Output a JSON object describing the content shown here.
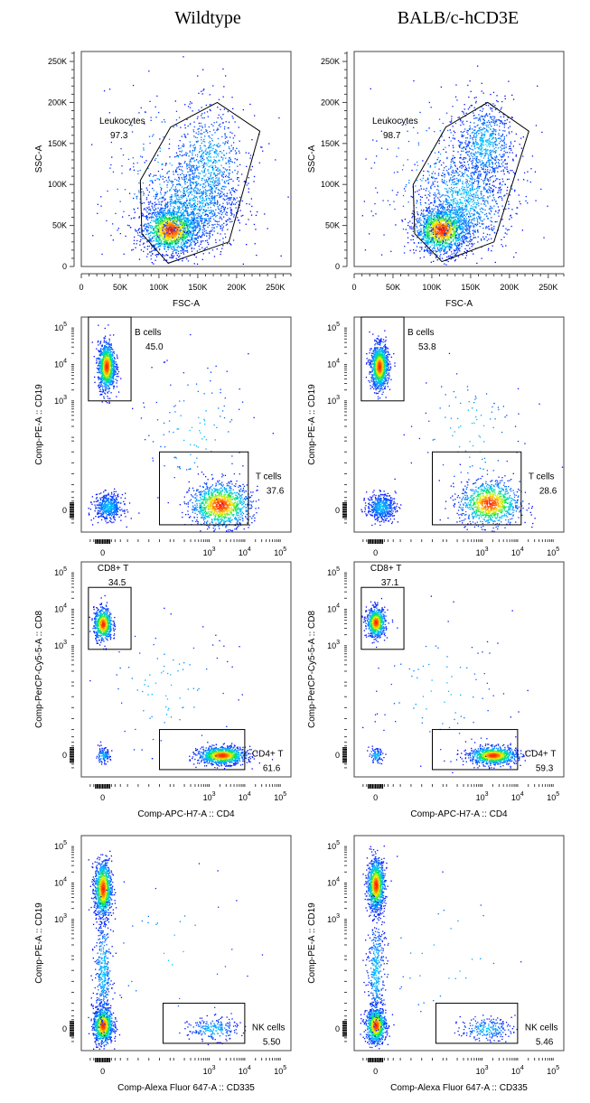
{
  "headers": {
    "left": "Wildtype",
    "right": "BALB/c-hCD3E"
  },
  "chart_data": [
    {
      "type": "scatter",
      "row": 0,
      "col": 0,
      "xlabel": "FSC-A",
      "ylabel": "SSC-A",
      "scale": "linear",
      "xlim": [
        0,
        270000
      ],
      "ylim": [
        0,
        262144
      ],
      "xticks": [
        {
          "v": 0,
          "t": "0"
        },
        {
          "v": 50000,
          "t": "50K"
        },
        {
          "v": 100000,
          "t": "100K"
        },
        {
          "v": 150000,
          "t": "150K"
        },
        {
          "v": 200000,
          "t": "200K"
        },
        {
          "v": 250000,
          "t": "250K"
        }
      ],
      "yticks": [
        {
          "v": 0,
          "t": "0"
        },
        {
          "v": 50000,
          "t": "50K"
        },
        {
          "v": 100000,
          "t": "100K"
        },
        {
          "v": 150000,
          "t": "150K"
        },
        {
          "v": 200000,
          "t": "200K"
        },
        {
          "v": 250000,
          "t": "250K"
        }
      ],
      "gates": [
        {
          "name": "Leukocytes",
          "value": "97.3",
          "shape": "polygon",
          "points": [
            [
              76000,
              105000
            ],
            [
              78000,
              40000
            ],
            [
              112000,
              4000
            ],
            [
              190000,
              30000
            ],
            [
              230000,
              165000
            ],
            [
              175000,
              200000
            ],
            [
              115000,
              170000
            ]
          ]
        }
      ],
      "populations": [
        {
          "cx": 115000,
          "cy": 45000,
          "sx": 18000,
          "sy": 14000,
          "n": 1500,
          "peak": true
        },
        {
          "cx": 140000,
          "cy": 75000,
          "sx": 30000,
          "sy": 28000,
          "n": 1000
        },
        {
          "cx": 165000,
          "cy": 125000,
          "sx": 22000,
          "sy": 35000,
          "n": 600
        },
        {
          "cx": 125000,
          "cy": 100000,
          "sx": 55000,
          "sy": 60000,
          "n": 350
        }
      ]
    },
    {
      "type": "scatter",
      "row": 0,
      "col": 1,
      "xlabel": "FSC-A",
      "ylabel": "SSC-A",
      "scale": "linear",
      "xlim": [
        0,
        270000
      ],
      "ylim": [
        0,
        262144
      ],
      "xticks": [
        {
          "v": 0,
          "t": "0"
        },
        {
          "v": 50000,
          "t": "50K"
        },
        {
          "v": 100000,
          "t": "100K"
        },
        {
          "v": 150000,
          "t": "150K"
        },
        {
          "v": 200000,
          "t": "200K"
        },
        {
          "v": 250000,
          "t": "250K"
        }
      ],
      "yticks": [
        {
          "v": 0,
          "t": "0"
        },
        {
          "v": 50000,
          "t": "50K"
        },
        {
          "v": 100000,
          "t": "100K"
        },
        {
          "v": 150000,
          "t": "150K"
        },
        {
          "v": 200000,
          "t": "200K"
        },
        {
          "v": 250000,
          "t": "250K"
        }
      ],
      "gates": [
        {
          "name": "Leukocytes",
          "value": "98.7",
          "shape": "polygon",
          "points": [
            [
              76000,
              100000
            ],
            [
              78000,
              40000
            ],
            [
              113000,
              6000
            ],
            [
              180000,
              30000
            ],
            [
              225000,
              165000
            ],
            [
              172000,
              200000
            ],
            [
              118000,
              170000
            ]
          ]
        }
      ],
      "populations": [
        {
          "cx": 112000,
          "cy": 45000,
          "sx": 17000,
          "sy": 14000,
          "n": 1500,
          "peak": true
        },
        {
          "cx": 140000,
          "cy": 80000,
          "sx": 28000,
          "sy": 30000,
          "n": 1000
        },
        {
          "cx": 168000,
          "cy": 150000,
          "sx": 18000,
          "sy": 25000,
          "n": 700
        },
        {
          "cx": 125000,
          "cy": 100000,
          "sx": 55000,
          "sy": 60000,
          "n": 350
        }
      ]
    },
    {
      "type": "scatter",
      "row": 1,
      "col": 0,
      "xlabel": "",
      "ylabel": "Comp-PE-A :: CD19",
      "scale": "biexponential",
      "xlim": [
        -0.6,
        5.3
      ],
      "ylim": [
        -0.6,
        5.3
      ],
      "xticks": [
        {
          "v": 0,
          "t": "0"
        },
        {
          "v": 3,
          "t": "10",
          "e": "3"
        },
        {
          "v": 4,
          "t": "10",
          "e": "4"
        },
        {
          "v": 5,
          "t": "10",
          "e": "5"
        }
      ],
      "yticks": [
        {
          "v": 0,
          "t": "0"
        },
        {
          "v": 3,
          "t": "10",
          "e": "3"
        },
        {
          "v": 4,
          "t": "10",
          "e": "4"
        },
        {
          "v": 5,
          "t": "10",
          "e": "5"
        }
      ],
      "gates": [
        {
          "name": "B cells",
          "value": "45.0",
          "shape": "rect",
          "points": [
            [
              -0.4,
              3.0
            ],
            [
              0.8,
              5.3
            ]
          ]
        },
        {
          "name": "T cells",
          "value": "37.6",
          "shape": "rect",
          "points": [
            [
              1.6,
              -0.4
            ],
            [
              4.1,
              1.6
            ]
          ]
        }
      ],
      "populations": [
        {
          "cx": 0.1,
          "cy": 3.95,
          "sx": 0.12,
          "sy": 0.32,
          "n": 1100,
          "peak": true
        },
        {
          "cx": 0.15,
          "cy": 0.1,
          "sx": 0.2,
          "sy": 0.18,
          "n": 500
        },
        {
          "cx": 3.3,
          "cy": 0.15,
          "sx": 0.42,
          "sy": 0.3,
          "n": 1200,
          "peak": true
        },
        {
          "cx": 2.6,
          "cy": 2.2,
          "sx": 0.8,
          "sy": 1.0,
          "n": 120
        }
      ]
    },
    {
      "type": "scatter",
      "row": 1,
      "col": 1,
      "xlabel": "",
      "ylabel": "Comp-PE-A :: CD19",
      "scale": "biexponential",
      "xlim": [
        -0.6,
        5.3
      ],
      "ylim": [
        -0.6,
        5.3
      ],
      "xticks": [
        {
          "v": 0,
          "t": "0"
        },
        {
          "v": 3,
          "t": "10",
          "e": "3"
        },
        {
          "v": 4,
          "t": "10",
          "e": "4"
        },
        {
          "v": 5,
          "t": "10",
          "e": "5"
        }
      ],
      "yticks": [
        {
          "v": 0,
          "t": "0"
        },
        {
          "v": 3,
          "t": "10",
          "e": "3"
        },
        {
          "v": 4,
          "t": "10",
          "e": "4"
        },
        {
          "v": 5,
          "t": "10",
          "e": "5"
        }
      ],
      "gates": [
        {
          "name": "B cells",
          "value": "53.8",
          "shape": "rect",
          "points": [
            [
              -0.4,
              3.0
            ],
            [
              0.8,
              5.3
            ]
          ]
        },
        {
          "name": "T cells",
          "value": "28.6",
          "shape": "rect",
          "points": [
            [
              1.6,
              -0.4
            ],
            [
              4.1,
              1.6
            ]
          ]
        }
      ],
      "populations": [
        {
          "cx": 0.1,
          "cy": 3.95,
          "sx": 0.12,
          "sy": 0.3,
          "n": 1200,
          "peak": true
        },
        {
          "cx": 0.15,
          "cy": 0.1,
          "sx": 0.2,
          "sy": 0.18,
          "n": 500
        },
        {
          "cx": 3.2,
          "cy": 0.2,
          "sx": 0.42,
          "sy": 0.3,
          "n": 1000,
          "peak": true
        },
        {
          "cx": 2.6,
          "cy": 2.2,
          "sx": 0.8,
          "sy": 1.0,
          "n": 100
        }
      ]
    },
    {
      "type": "scatter",
      "row": 2,
      "col": 0,
      "xlabel": "Comp-APC-H7-A :: CD4",
      "ylabel": "Comp-PerCP-Cy5-5-A :: CD8",
      "scale": "biexponential",
      "xlim": [
        -0.6,
        5.3
      ],
      "ylim": [
        -0.6,
        5.3
      ],
      "xticks": [
        {
          "v": 0,
          "t": "0"
        },
        {
          "v": 3,
          "t": "10",
          "e": "3"
        },
        {
          "v": 4,
          "t": "10",
          "e": "4"
        },
        {
          "v": 5,
          "t": "10",
          "e": "5"
        }
      ],
      "yticks": [
        {
          "v": 0,
          "t": "0"
        },
        {
          "v": 3,
          "t": "10",
          "e": "3"
        },
        {
          "v": 4,
          "t": "10",
          "e": "4"
        },
        {
          "v": 5,
          "t": "10",
          "e": "5"
        }
      ],
      "gates": [
        {
          "name": "CD8+ T",
          "value": "34.5",
          "shape": "rect",
          "points": [
            [
              -0.4,
              2.9
            ],
            [
              0.8,
              4.6
            ]
          ]
        },
        {
          "name": "CD4+ T",
          "value": "61.6",
          "shape": "rect",
          "points": [
            [
              1.6,
              -0.4
            ],
            [
              4.0,
              0.7
            ]
          ]
        }
      ],
      "populations": [
        {
          "cx": 0.0,
          "cy": 3.6,
          "sx": 0.13,
          "sy": 0.22,
          "n": 700,
          "peak": true
        },
        {
          "cx": 3.35,
          "cy": 0.0,
          "sx": 0.33,
          "sy": 0.12,
          "n": 1100,
          "peak": true
        },
        {
          "cx": 0.0,
          "cy": 0.0,
          "sx": 0.1,
          "sy": 0.1,
          "n": 120
        },
        {
          "cx": 1.8,
          "cy": 1.8,
          "sx": 1.0,
          "sy": 1.0,
          "n": 90
        }
      ]
    },
    {
      "type": "scatter",
      "row": 2,
      "col": 1,
      "xlabel": "Comp-APC-H7-A :: CD4",
      "ylabel": "Comp-PerCP-Cy5-5-A :: CD8",
      "scale": "biexponential",
      "xlim": [
        -0.6,
        5.3
      ],
      "ylim": [
        -0.6,
        5.3
      ],
      "xticks": [
        {
          "v": 0,
          "t": "0"
        },
        {
          "v": 3,
          "t": "10",
          "e": "3"
        },
        {
          "v": 4,
          "t": "10",
          "e": "4"
        },
        {
          "v": 5,
          "t": "10",
          "e": "5"
        }
      ],
      "yticks": [
        {
          "v": 0,
          "t": "0"
        },
        {
          "v": 3,
          "t": "10",
          "e": "3"
        },
        {
          "v": 4,
          "t": "10",
          "e": "4"
        },
        {
          "v": 5,
          "t": "10",
          "e": "5"
        }
      ],
      "gates": [
        {
          "name": "CD8+ T",
          "value": "37.1",
          "shape": "rect",
          "points": [
            [
              -0.4,
              2.9
            ],
            [
              0.8,
              4.6
            ]
          ]
        },
        {
          "name": "CD4+ T",
          "value": "59.3",
          "shape": "rect",
          "points": [
            [
              1.6,
              -0.4
            ],
            [
              4.0,
              0.7
            ]
          ]
        }
      ],
      "populations": [
        {
          "cx": 0.0,
          "cy": 3.65,
          "sx": 0.13,
          "sy": 0.2,
          "n": 750,
          "peak": true
        },
        {
          "cx": 3.3,
          "cy": 0.0,
          "sx": 0.33,
          "sy": 0.12,
          "n": 1000,
          "peak": true
        },
        {
          "cx": 0.0,
          "cy": 0.0,
          "sx": 0.1,
          "sy": 0.1,
          "n": 100
        },
        {
          "cx": 1.8,
          "cy": 1.8,
          "sx": 1.0,
          "sy": 1.0,
          "n": 90
        }
      ]
    },
    {
      "type": "scatter",
      "row": 3,
      "col": 0,
      "xlabel": "Comp-Alexa Fluor 647-A :: CD335",
      "ylabel": "Comp-PE-A :: CD19",
      "scale": "biexponential",
      "xlim": [
        -0.6,
        5.3
      ],
      "ylim": [
        -0.6,
        5.3
      ],
      "xticks": [
        {
          "v": 0,
          "t": "0"
        },
        {
          "v": 3,
          "t": "10",
          "e": "3"
        },
        {
          "v": 4,
          "t": "10",
          "e": "4"
        },
        {
          "v": 5,
          "t": "10",
          "e": "5"
        }
      ],
      "yticks": [
        {
          "v": 0,
          "t": "0"
        },
        {
          "v": 3,
          "t": "10",
          "e": "3"
        },
        {
          "v": 4,
          "t": "10",
          "e": "4"
        },
        {
          "v": 5,
          "t": "10",
          "e": "5"
        }
      ],
      "gates": [
        {
          "name": "NK cells",
          "value": "5.50",
          "shape": "rect",
          "points": [
            [
              1.7,
              -0.4
            ],
            [
              4.0,
              0.7
            ]
          ]
        }
      ],
      "populations": [
        {
          "cx": 0.0,
          "cy": 3.85,
          "sx": 0.12,
          "sy": 0.38,
          "n": 1100,
          "peak": true
        },
        {
          "cx": 0.0,
          "cy": 0.1,
          "sx": 0.14,
          "sy": 0.25,
          "n": 900,
          "peak": true
        },
        {
          "cx": 0.0,
          "cy": 1.6,
          "sx": 0.12,
          "sy": 0.8,
          "n": 400
        },
        {
          "cx": 3.1,
          "cy": 0.0,
          "sx": 0.35,
          "sy": 0.15,
          "n": 220
        },
        {
          "cx": 2.0,
          "cy": 2.0,
          "sx": 1.2,
          "sy": 1.2,
          "n": 40
        }
      ]
    },
    {
      "type": "scatter",
      "row": 3,
      "col": 1,
      "xlabel": "Comp-Alexa Fluor 647-A :: CD335",
      "ylabel": "Comp-PE-A :: CD19",
      "scale": "biexponential",
      "xlim": [
        -0.6,
        5.3
      ],
      "ylim": [
        -0.6,
        5.3
      ],
      "xticks": [
        {
          "v": 0,
          "t": "0"
        },
        {
          "v": 3,
          "t": "10",
          "e": "3"
        },
        {
          "v": 4,
          "t": "10",
          "e": "4"
        },
        {
          "v": 5,
          "t": "10",
          "e": "5"
        }
      ],
      "yticks": [
        {
          "v": 0,
          "t": "0"
        },
        {
          "v": 3,
          "t": "10",
          "e": "3"
        },
        {
          "v": 4,
          "t": "10",
          "e": "4"
        },
        {
          "v": 5,
          "t": "10",
          "e": "5"
        }
      ],
      "gates": [
        {
          "name": "NK cells",
          "value": "5.46",
          "shape": "rect",
          "points": [
            [
              1.7,
              -0.4
            ],
            [
              4.0,
              0.7
            ]
          ]
        }
      ],
      "populations": [
        {
          "cx": 0.0,
          "cy": 3.95,
          "sx": 0.12,
          "sy": 0.35,
          "n": 1100,
          "peak": true
        },
        {
          "cx": 0.0,
          "cy": 0.1,
          "sx": 0.14,
          "sy": 0.25,
          "n": 900,
          "peak": true
        },
        {
          "cx": 0.0,
          "cy": 1.6,
          "sx": 0.12,
          "sy": 0.8,
          "n": 400
        },
        {
          "cx": 3.1,
          "cy": 0.0,
          "sx": 0.35,
          "sy": 0.15,
          "n": 220
        },
        {
          "cx": 2.0,
          "cy": 2.0,
          "sx": 1.2,
          "sy": 1.2,
          "n": 40
        }
      ]
    }
  ]
}
